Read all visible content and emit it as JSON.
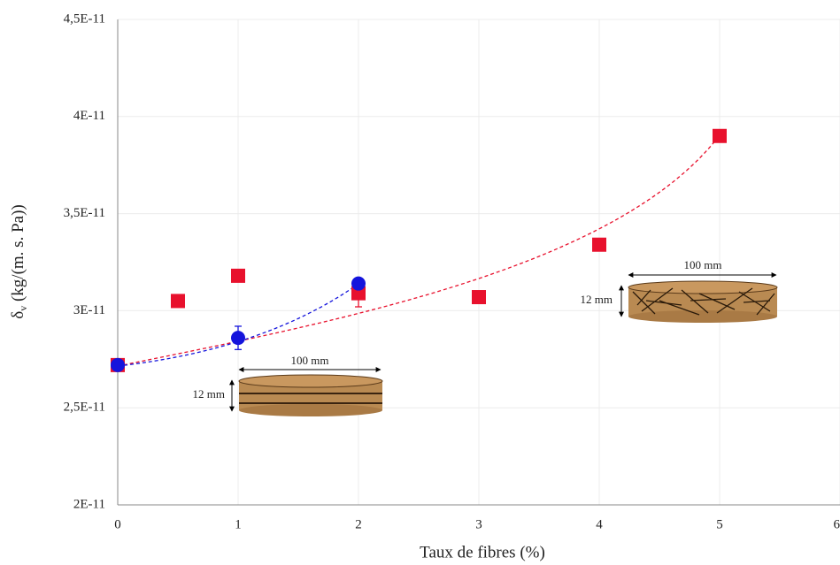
{
  "chart_data": {
    "type": "scatter",
    "x_label": "Taux de fibres (%)",
    "y_label_symbol": "δ",
    "y_label_subscript": "v",
    "y_label_unit": " (kg/(m. s. Pa))",
    "xlim": [
      0,
      6
    ],
    "xticks": [
      0,
      1,
      2,
      3,
      4,
      5,
      6
    ],
    "ylim": [
      2e-11,
      4.5e-11
    ],
    "yticks": [
      {
        "value": 2e-11,
        "label": "2E-11"
      },
      {
        "value": 2.5e-11,
        "label": "2,5E-11"
      },
      {
        "value": 3e-11,
        "label": "3E-11"
      },
      {
        "value": 3.5e-11,
        "label": "3,5E-11"
      },
      {
        "value": 4e-11,
        "label": "4E-11"
      },
      {
        "value": 4.5e-11,
        "label": "4,5E-11"
      }
    ],
    "grid": true,
    "series": [
      {
        "color": "#e8112d",
        "marker": "square",
        "x": [
          0,
          0.5,
          1,
          2,
          3,
          4,
          5
        ],
        "values": [
          2.72e-11,
          3.05e-11,
          3.18e-11,
          3.09e-11,
          3.07e-11,
          3.34e-11,
          3.9e-11
        ],
        "errors": [
          null,
          null,
          null,
          7e-13,
          null,
          null,
          null
        ]
      },
      {
        "color": "#1414dc",
        "marker": "circle",
        "x": [
          0,
          1,
          2
        ],
        "values": [
          2.72e-11,
          2.86e-11,
          3.14e-11
        ],
        "errors": [
          null,
          6e-13,
          null
        ]
      }
    ],
    "insets": [
      {
        "width_label": "100 mm",
        "height_label": "12 mm"
      },
      {
        "width_label": "100 mm",
        "height_label": "12 mm"
      }
    ]
  }
}
